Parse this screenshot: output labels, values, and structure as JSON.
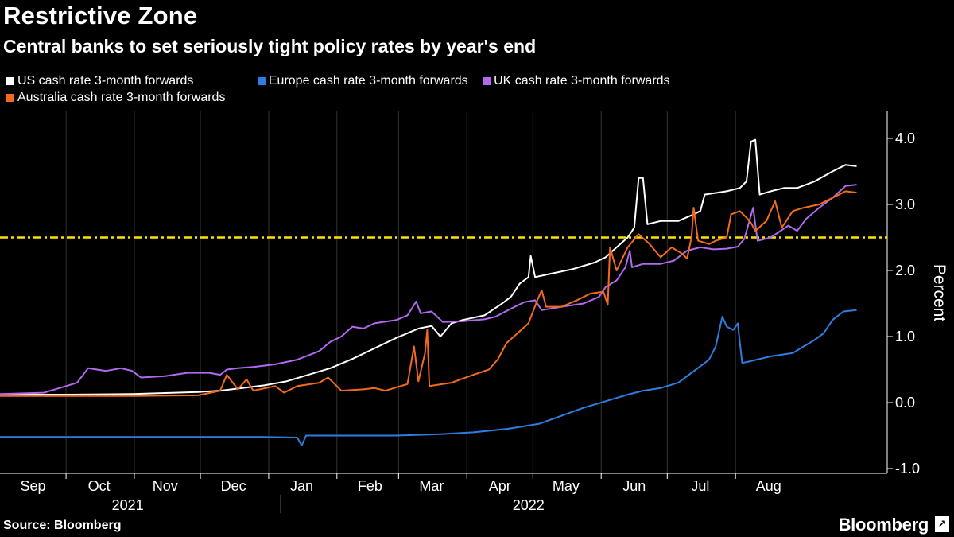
{
  "title": "Restrictive Zone",
  "subtitle": "Central banks to set seriously tight policy rates by year's end",
  "source": "Source: Bloomberg",
  "brand": "Bloomberg",
  "brand_icon": "chart-icon",
  "chart_data": {
    "type": "line",
    "title": "Restrictive Zone",
    "subtitle": "Central banks to set seriously tight policy rates by year's end",
    "xlabel": "",
    "ylabel": "Percent",
    "ylim": [
      -1.1,
      4.4
    ],
    "xlim_days": [
      0,
      364
    ],
    "y_ticks": [
      4.0,
      3.0,
      2.0,
      1.0,
      0.0,
      -1.0
    ],
    "y_tick_labels": [
      "4.0",
      "3.0",
      "2.0",
      "1.0",
      "0.0",
      "-1.0"
    ],
    "month_labels": [
      "Sep",
      "Oct",
      "Nov",
      "Dec",
      "Jan",
      "Feb",
      "Mar",
      "Apr",
      "May",
      "Jun",
      "Jul",
      "Aug"
    ],
    "month_label_days": [
      15,
      45,
      75,
      106,
      137,
      168,
      196,
      227,
      257,
      288,
      318,
      349
    ],
    "month_boundary_days": [
      30,
      61,
      91,
      122,
      153,
      181,
      212,
      242,
      273,
      303,
      334
    ],
    "year_labels": [
      "2021",
      "2022"
    ],
    "year_label_days": [
      58,
      240
    ],
    "year_divider_day": 122,
    "reference_line": {
      "value": 2.5,
      "color": "#ffe100",
      "style": "dash-dot"
    },
    "legend_position": "top-left",
    "grid": false,
    "series": [
      {
        "name": "US cash rate 3-month forwards",
        "color": "#ffffff",
        "points": [
          [
            0,
            0.12
          ],
          [
            30,
            0.12
          ],
          [
            60,
            0.13
          ],
          [
            90,
            0.16
          ],
          [
            100,
            0.18
          ],
          [
            110,
            0.22
          ],
          [
            120,
            0.26
          ],
          [
            130,
            0.32
          ],
          [
            140,
            0.42
          ],
          [
            150,
            0.52
          ],
          [
            160,
            0.66
          ],
          [
            170,
            0.82
          ],
          [
            180,
            0.98
          ],
          [
            190,
            1.12
          ],
          [
            196,
            1.16
          ],
          [
            200,
            1.0
          ],
          [
            205,
            1.2
          ],
          [
            210,
            1.25
          ],
          [
            220,
            1.32
          ],
          [
            228,
            1.5
          ],
          [
            232,
            1.6
          ],
          [
            236,
            1.8
          ],
          [
            240,
            1.9
          ],
          [
            241,
            2.22
          ],
          [
            243,
            1.9
          ],
          [
            250,
            1.95
          ],
          [
            260,
            2.02
          ],
          [
            270,
            2.12
          ],
          [
            275,
            2.2
          ],
          [
            280,
            2.35
          ],
          [
            285,
            2.5
          ],
          [
            288,
            2.65
          ],
          [
            290,
            3.4
          ],
          [
            292,
            3.4
          ],
          [
            294,
            2.7
          ],
          [
            300,
            2.75
          ],
          [
            308,
            2.75
          ],
          [
            315,
            2.85
          ],
          [
            318,
            2.9
          ],
          [
            320,
            3.15
          ],
          [
            330,
            3.2
          ],
          [
            336,
            3.25
          ],
          [
            339,
            3.35
          ],
          [
            341,
            3.95
          ],
          [
            343,
            3.98
          ],
          [
            345,
            3.15
          ],
          [
            350,
            3.2
          ],
          [
            356,
            3.25
          ],
          [
            362,
            3.25
          ],
          [
            370,
            3.35
          ],
          [
            378,
            3.5
          ],
          [
            384,
            3.6
          ],
          [
            389,
            3.58
          ]
        ]
      },
      {
        "name": "Europe cash rate 3-month forwards",
        "color": "#2f7de1",
        "points": [
          [
            0,
            -0.52
          ],
          [
            60,
            -0.52
          ],
          [
            120,
            -0.52
          ],
          [
            135,
            -0.53
          ],
          [
            137,
            -0.65
          ],
          [
            139,
            -0.5
          ],
          [
            160,
            -0.5
          ],
          [
            180,
            -0.5
          ],
          [
            200,
            -0.48
          ],
          [
            215,
            -0.45
          ],
          [
            230,
            -0.4
          ],
          [
            245,
            -0.32
          ],
          [
            255,
            -0.2
          ],
          [
            265,
            -0.08
          ],
          [
            275,
            0.02
          ],
          [
            285,
            0.12
          ],
          [
            292,
            0.18
          ],
          [
            300,
            0.22
          ],
          [
            308,
            0.3
          ],
          [
            312,
            0.4
          ],
          [
            318,
            0.55
          ],
          [
            322,
            0.65
          ],
          [
            325,
            0.85
          ],
          [
            328,
            1.3
          ],
          [
            330,
            1.15
          ],
          [
            333,
            1.1
          ],
          [
            335,
            1.2
          ],
          [
            337,
            0.6
          ],
          [
            340,
            0.62
          ],
          [
            350,
            0.7
          ],
          [
            360,
            0.75
          ],
          [
            365,
            0.85
          ],
          [
            370,
            0.95
          ],
          [
            374,
            1.05
          ],
          [
            378,
            1.25
          ],
          [
            383,
            1.38
          ],
          [
            389,
            1.4
          ]
        ]
      },
      {
        "name": "UK cash rate 3-month forwards",
        "color": "#b169ef",
        "points": [
          [
            0,
            0.13
          ],
          [
            20,
            0.15
          ],
          [
            30,
            0.25
          ],
          [
            35,
            0.3
          ],
          [
            40,
            0.52
          ],
          [
            48,
            0.48
          ],
          [
            55,
            0.52
          ],
          [
            60,
            0.48
          ],
          [
            64,
            0.38
          ],
          [
            75,
            0.4
          ],
          [
            85,
            0.45
          ],
          [
            95,
            0.45
          ],
          [
            100,
            0.42
          ],
          [
            103,
            0.5
          ],
          [
            108,
            0.52
          ],
          [
            115,
            0.54
          ],
          [
            125,
            0.58
          ],
          [
            135,
            0.65
          ],
          [
            145,
            0.78
          ],
          [
            150,
            0.92
          ],
          [
            155,
            1.0
          ],
          [
            160,
            1.15
          ],
          [
            165,
            1.12
          ],
          [
            170,
            1.2
          ],
          [
            180,
            1.25
          ],
          [
            185,
            1.32
          ],
          [
            189,
            1.53
          ],
          [
            191,
            1.35
          ],
          [
            196,
            1.38
          ],
          [
            201,
            1.22
          ],
          [
            210,
            1.23
          ],
          [
            220,
            1.26
          ],
          [
            225,
            1.3
          ],
          [
            232,
            1.42
          ],
          [
            238,
            1.52
          ],
          [
            243,
            1.55
          ],
          [
            246,
            1.4
          ],
          [
            255,
            1.45
          ],
          [
            265,
            1.5
          ],
          [
            272,
            1.6
          ],
          [
            275,
            1.75
          ],
          [
            280,
            1.85
          ],
          [
            284,
            2.05
          ],
          [
            286,
            2.3
          ],
          [
            287,
            2.05
          ],
          [
            292,
            2.1
          ],
          [
            300,
            2.1
          ],
          [
            306,
            2.15
          ],
          [
            312,
            2.3
          ],
          [
            318,
            2.35
          ],
          [
            324,
            2.32
          ],
          [
            330,
            2.33
          ],
          [
            335,
            2.36
          ],
          [
            338,
            2.48
          ],
          [
            342,
            2.95
          ],
          [
            344,
            2.45
          ],
          [
            350,
            2.5
          ],
          [
            358,
            2.68
          ],
          [
            362,
            2.6
          ],
          [
            366,
            2.78
          ],
          [
            372,
            2.95
          ],
          [
            378,
            3.1
          ],
          [
            384,
            3.28
          ],
          [
            389,
            3.3
          ]
        ]
      },
      {
        "name": "Australia cash rate 3-month forwards",
        "color": "#f26b1d",
        "points": [
          [
            0,
            0.1
          ],
          [
            30,
            0.1
          ],
          [
            60,
            0.1
          ],
          [
            90,
            0.11
          ],
          [
            100,
            0.18
          ],
          [
            103,
            0.42
          ],
          [
            108,
            0.2
          ],
          [
            112,
            0.35
          ],
          [
            115,
            0.18
          ],
          [
            125,
            0.25
          ],
          [
            129,
            0.15
          ],
          [
            135,
            0.25
          ],
          [
            145,
            0.3
          ],
          [
            149,
            0.38
          ],
          [
            155,
            0.18
          ],
          [
            165,
            0.2
          ],
          [
            170,
            0.22
          ],
          [
            175,
            0.18
          ],
          [
            185,
            0.28
          ],
          [
            188,
            0.85
          ],
          [
            190,
            0.32
          ],
          [
            193,
            0.75
          ],
          [
            194,
            1.1
          ],
          [
            195,
            0.25
          ],
          [
            205,
            0.3
          ],
          [
            215,
            0.42
          ],
          [
            222,
            0.5
          ],
          [
            226,
            0.65
          ],
          [
            230,
            0.9
          ],
          [
            235,
            1.05
          ],
          [
            240,
            1.2
          ],
          [
            244,
            1.55
          ],
          [
            246,
            1.7
          ],
          [
            248,
            1.45
          ],
          [
            255,
            1.45
          ],
          [
            262,
            1.55
          ],
          [
            268,
            1.65
          ],
          [
            274,
            1.68
          ],
          [
            276,
            1.48
          ],
          [
            277,
            2.35
          ],
          [
            280,
            2.0
          ],
          [
            285,
            2.35
          ],
          [
            290,
            2.55
          ],
          [
            295,
            2.4
          ],
          [
            300,
            2.2
          ],
          [
            305,
            2.35
          ],
          [
            310,
            2.25
          ],
          [
            312,
            2.18
          ],
          [
            314,
            2.5
          ],
          [
            315,
            2.95
          ],
          [
            317,
            2.45
          ],
          [
            322,
            2.4
          ],
          [
            325,
            2.45
          ],
          [
            330,
            2.5
          ],
          [
            332,
            2.85
          ],
          [
            336,
            2.9
          ],
          [
            339,
            2.8
          ],
          [
            341,
            2.72
          ],
          [
            343,
            2.6
          ],
          [
            348,
            2.75
          ],
          [
            352,
            3.05
          ],
          [
            355,
            2.65
          ],
          [
            360,
            2.9
          ],
          [
            365,
            2.95
          ],
          [
            372,
            3.0
          ],
          [
            378,
            3.1
          ],
          [
            384,
            3.2
          ],
          [
            389,
            3.18
          ]
        ]
      }
    ]
  }
}
